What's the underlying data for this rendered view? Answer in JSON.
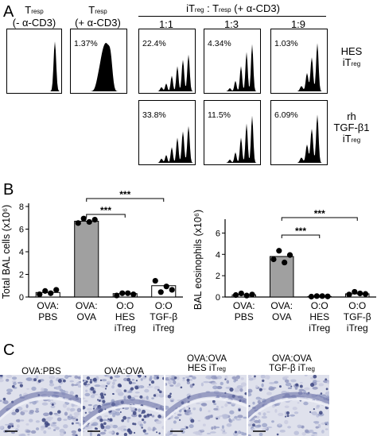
{
  "panelA": {
    "letter": "A",
    "col_resp_unstim": {
      "main": "T",
      "sub": "resp",
      "line2": "(- α-CD3)"
    },
    "col_resp_stim": {
      "main": "T",
      "sub": "resp",
      "line2": "(+ α-CD3)"
    },
    "col_group": {
      "pre": "iT",
      "sub1": "reg",
      "mid": " : T",
      "sub2": "resp",
      "post": " (+ α-CD3)"
    },
    "ratios": [
      "1:1",
      "1:3",
      "1:9"
    ],
    "row_hes": {
      "line1": "HES",
      "line2": "iT",
      "sub": "reg"
    },
    "row_tgf": {
      "line1": "rh",
      "line2": "TGF-β1",
      "line3": "iT",
      "sub": "reg"
    },
    "hist_row1_pcts": [
      "",
      "1.37%",
      "22.4%",
      "4.34%",
      "1.03%"
    ],
    "hist_row2_pcts": [
      "33.8%",
      "11.5%",
      "6.09%"
    ]
  },
  "panelB": {
    "letter": "B"
  },
  "panelC": {
    "letter": "C",
    "labels": [
      {
        "line1": "OVA:PBS",
        "line2": "",
        "sub": ""
      },
      {
        "line1": "OVA:OVA",
        "line2": "",
        "sub": ""
      },
      {
        "line1": "OVA:OVA",
        "line2": "HES iT",
        "sub": "reg"
      },
      {
        "line1": "OVA:OVA",
        "line2": "TGF-β iT",
        "sub": "reg"
      }
    ]
  },
  "chart_data": [
    {
      "type": "bar",
      "ylabel": "Total BAL cells (x10⁶)",
      "ylim": [
        0,
        8
      ],
      "yticks": [
        0,
        2,
        4,
        6,
        8
      ],
      "categories": [
        {
          "line1": "OVA:",
          "line2": "PBS",
          "line3": ""
        },
        {
          "line1": "OVA:",
          "line2": "OVA",
          "line3": ""
        },
        {
          "line1": "O:O",
          "line2": "HES",
          "line3": "iTreg"
        },
        {
          "line1": "O:O",
          "line2": "TGF-β",
          "line3": "iTreg"
        }
      ],
      "values": [
        0.4,
        6.7,
        0.3,
        1.0
      ],
      "bar_colors": [
        "#ffffff",
        "#a0a0a0",
        "#ffffff",
        "#ffffff"
      ],
      "points": [
        [
          0.2,
          0.5,
          0.3,
          0.6
        ],
        [
          6.5,
          6.9,
          6.6,
          6.8
        ],
        [
          0.1,
          0.3,
          0.3,
          0.2
        ],
        [
          1.4,
          0.4,
          0.9,
          0.6
        ]
      ],
      "annotations": [
        {
          "from": 1,
          "to": 2,
          "label": "***"
        },
        {
          "from": 1,
          "to": 3,
          "label": "***"
        }
      ]
    },
    {
      "type": "bar",
      "ylabel": "BAL eosinophils (x10⁶)",
      "ylim": [
        0,
        7
      ],
      "yticks": [
        0,
        2,
        4,
        6
      ],
      "categories": [
        {
          "line1": "OVA:",
          "line2": "PBS",
          "line3": ""
        },
        {
          "line1": "OVA:",
          "line2": "OVA",
          "line3": ""
        },
        {
          "line1": "O:O",
          "line2": "HES",
          "line3": "iTreg"
        },
        {
          "line1": "O:O",
          "line2": "TGF-β",
          "line3": "iTreg"
        }
      ],
      "values": [
        0.2,
        3.8,
        0.05,
        0.3
      ],
      "bar_colors": [
        "#ffffff",
        "#a0a0a0",
        "#ffffff",
        "#ffffff"
      ],
      "points": [
        [
          0.15,
          0.3,
          0.1,
          0.2
        ],
        [
          3.5,
          4.3,
          3.2,
          3.9
        ],
        [
          0.0,
          0.05,
          0.05,
          0.02
        ],
        [
          0.2,
          0.45,
          0.3,
          0.25
        ]
      ],
      "annotations": [
        {
          "from": 1,
          "to": 2,
          "label": "***"
        },
        {
          "from": 1,
          "to": 3,
          "label": "***"
        }
      ]
    }
  ]
}
